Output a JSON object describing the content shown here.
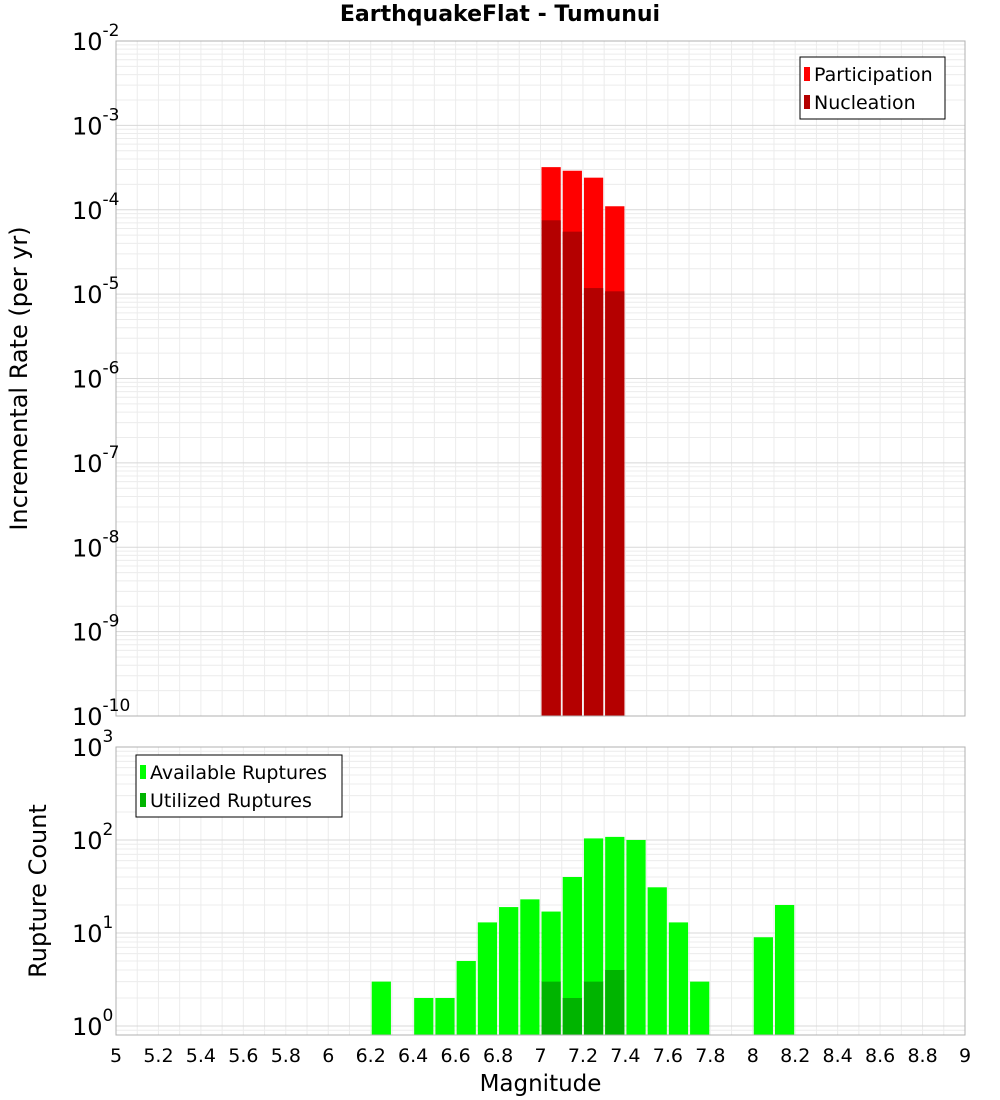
{
  "title": "EarthquakeFlat - Tumunui",
  "chart_data": [
    {
      "type": "bar",
      "title": "EarthquakeFlat - Tumunui",
      "ylabel": "Incremental Rate (per yr)",
      "xlim": [
        5,
        9
      ],
      "ylim": [
        1e-10,
        0.01
      ],
      "yscale": "log",
      "grid": true,
      "legend_position": "top-right",
      "bin_width": 0.1,
      "y_tick_exponents": [
        -10,
        -9,
        -8,
        -7,
        -6,
        -5,
        -4,
        -3,
        -2
      ],
      "series": [
        {
          "name": "Participation",
          "color": "#ff0000",
          "points": [
            [
              7.05,
              0.00032
            ],
            [
              7.15,
              0.00029
            ],
            [
              7.25,
              0.00024
            ],
            [
              7.35,
              0.00011
            ]
          ]
        },
        {
          "name": "Nucleation",
          "color": "#b40000",
          "points": [
            [
              7.05,
              7.5e-05
            ],
            [
              7.15,
              5.5e-05
            ],
            [
              7.25,
              1.18e-05
            ],
            [
              7.35,
              1.08e-05
            ]
          ]
        }
      ]
    },
    {
      "type": "bar",
      "xlabel": "Magnitude",
      "ylabel": "Rupture Count",
      "xlim": [
        5,
        9
      ],
      "ylim": [
        0.8,
        1000
      ],
      "yscale": "log",
      "grid": true,
      "legend_position": "top-left",
      "bin_width": 0.1,
      "y_tick_exponents": [
        0,
        1,
        2,
        3
      ],
      "x_ticks": [
        "5",
        "5.2",
        "5.4",
        "5.6",
        "5.8",
        "6",
        "6.2",
        "6.4",
        "6.6",
        "6.8",
        "7",
        "7.2",
        "7.4",
        "7.6",
        "7.8",
        "8",
        "8.2",
        "8.4",
        "8.6",
        "8.8",
        "9"
      ],
      "series": [
        {
          "name": "Available Ruptures",
          "color": "#00ff00",
          "points": [
            [
              6.25,
              3
            ],
            [
              6.45,
              2
            ],
            [
              6.55,
              2
            ],
            [
              6.65,
              5
            ],
            [
              6.75,
              13
            ],
            [
              6.85,
              19
            ],
            [
              6.95,
              23
            ],
            [
              7.05,
              17
            ],
            [
              7.15,
              40
            ],
            [
              7.25,
              104
            ],
            [
              7.35,
              108
            ],
            [
              7.45,
              100
            ],
            [
              7.55,
              31
            ],
            [
              7.65,
              13
            ],
            [
              7.75,
              3
            ],
            [
              8.05,
              9
            ],
            [
              8.15,
              20
            ]
          ]
        },
        {
          "name": "Utilized Ruptures",
          "color": "#00b400",
          "points": [
            [
              7.05,
              3
            ],
            [
              7.15,
              2
            ],
            [
              7.25,
              3
            ],
            [
              7.35,
              4
            ]
          ]
        }
      ]
    }
  ]
}
